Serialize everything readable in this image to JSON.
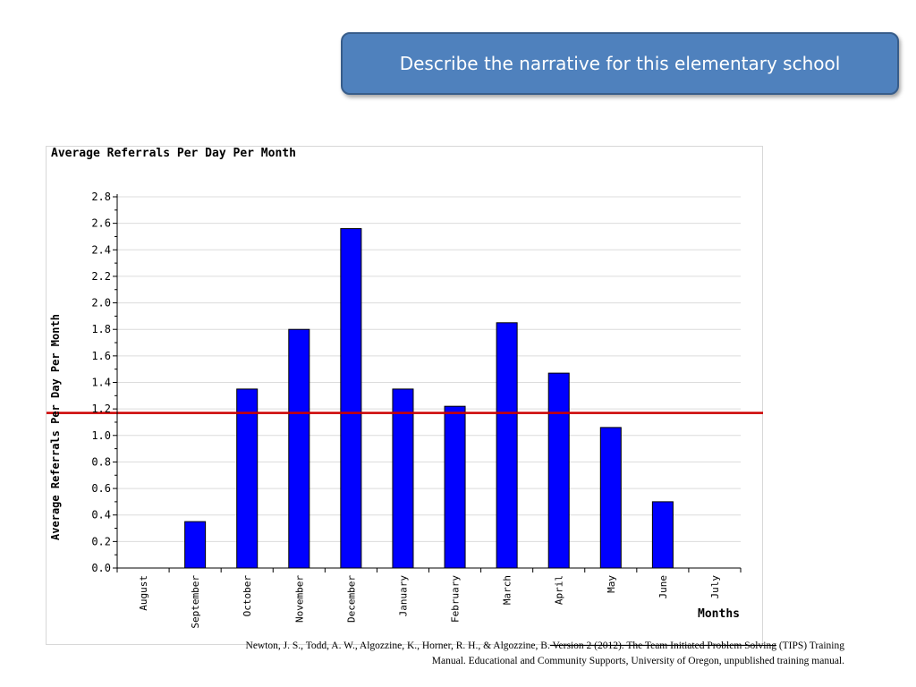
{
  "slide": {
    "callout_text": "Describe the narrative for this elementary school"
  },
  "citation": {
    "line1_start": "Newton, J. S., Todd, A. W., Algozzine, K., Horner, R. H., & Algozzine, B.",
    "line1_struck": "  Version 2 (2012). The Team Initiated Problem Solving",
    "line1_end": " (TIPS) Training",
    "line2": "Manual. Educational and Community Supports, University of Oregon, unpublished training manual."
  },
  "chart_data": {
    "type": "bar",
    "title": "Average Referrals Per Day Per Month",
    "xlabel": "Months",
    "ylabel": "Average Referrals Per Day Per Month",
    "categories": [
      "August",
      "September",
      "October",
      "November",
      "December",
      "January",
      "February",
      "March",
      "April",
      "May",
      "June",
      "July"
    ],
    "values": [
      0,
      0.35,
      1.35,
      1.8,
      2.56,
      1.35,
      1.22,
      1.85,
      1.47,
      1.06,
      0.5,
      0
    ],
    "ylim": [
      0,
      2.8
    ],
    "yticks": [
      "0.0",
      "0.2",
      "0.4",
      "0.6",
      "0.8",
      "1.0",
      "1.2",
      "1.4",
      "1.6",
      "1.8",
      "2.0",
      "2.2",
      "2.4",
      "2.6",
      "2.8"
    ],
    "reference_line": 1.17,
    "grid": true,
    "bar_color": "#0000ff",
    "reference_line_color": "#cc0000"
  }
}
